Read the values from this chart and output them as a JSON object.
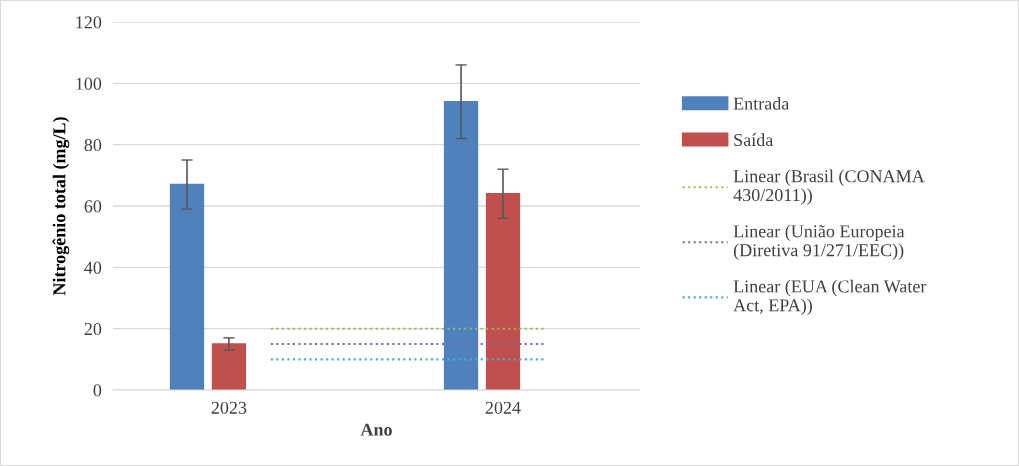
{
  "chart_data": {
    "type": "bar",
    "xlabel": "Ano",
    "ylabel": "Nitrogênio total (mg/L)",
    "categories": [
      "2023",
      "2024"
    ],
    "series": [
      {
        "name": "Entrada",
        "color": "#4f81bd",
        "values": [
          67,
          94
        ],
        "errors": [
          8,
          12
        ]
      },
      {
        "name": "Saída",
        "color": "#c0504d",
        "values": [
          15,
          64
        ],
        "errors": [
          2,
          8
        ]
      },
      {
        "name": "Linear (Brasil (CONAMA\n430/2011))",
        "type": "line",
        "line_style": "dotted",
        "color": "#9bbb59",
        "values": [
          20,
          20
        ]
      },
      {
        "name": "Linear (União Europeia\n(Diretiva 91/271/EEC))",
        "type": "line",
        "line_style": "dotted",
        "color": "#8064a2",
        "values": [
          15,
          15
        ]
      },
      {
        "name": "Linear (EUA (Clean Water\nAct, EPA))",
        "type": "line",
        "line_style": "dotted",
        "color": "#4bacc6",
        "values": [
          10,
          10
        ]
      }
    ],
    "ylim": [
      0,
      120
    ],
    "yticks": [
      0,
      20,
      40,
      60,
      80,
      100,
      120
    ],
    "grid": "y",
    "legend": "right"
  }
}
